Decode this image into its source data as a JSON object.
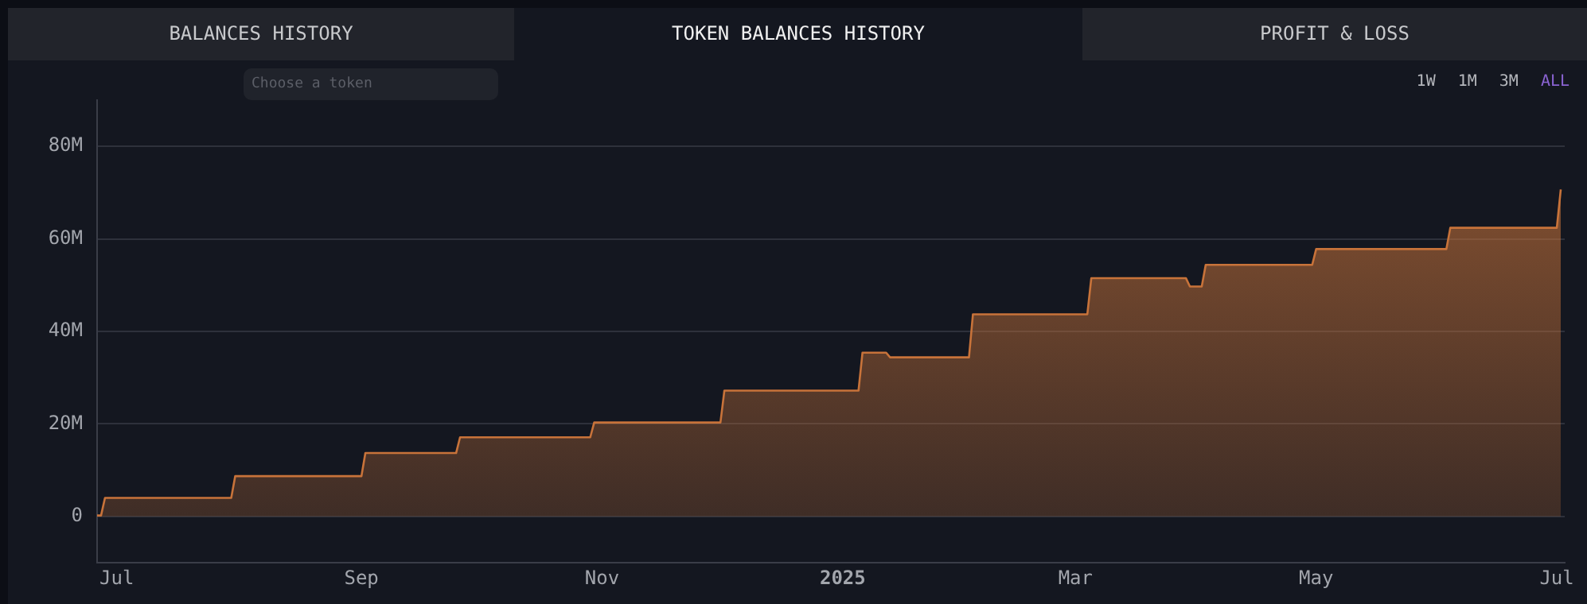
{
  "chart_data": {
    "type": "area",
    "title": "TOKEN BALANCES HISTORY",
    "annotations": [
      "BALANCES HISTORY",
      "PROFIT & LOSS",
      "Choose a token",
      "1W",
      "1M",
      "3M",
      "ALL"
    ],
    "x": [
      "2024-06-26",
      "2024-06-27",
      "2024-06-28",
      "2024-07-30",
      "2024-07-31",
      "2024-09-01",
      "2024-09-02",
      "2024-09-25",
      "2024-09-26",
      "2024-10-29",
      "2024-10-30",
      "2024-12-01",
      "2024-12-02",
      "2025-01-05",
      "2025-01-06",
      "2025-01-12",
      "2025-01-13",
      "2025-02-02",
      "2025-02-03",
      "2025-03-04",
      "2025-03-05",
      "2025-03-29",
      "2025-03-30",
      "2025-04-02",
      "2025-04-03",
      "2025-04-30",
      "2025-05-01",
      "2025-06-03",
      "2025-06-04",
      "2025-07-01",
      "2025-07-02"
    ],
    "series": [
      {
        "color": "#c8733a",
        "values": [
          0.2,
          0.2,
          4,
          4,
          8.7,
          8.7,
          13.7,
          13.7,
          17.1,
          17.1,
          20.3,
          20.3,
          27.2,
          27.2,
          35.4,
          35.4,
          34.4,
          34.4,
          43.7,
          43.7,
          51.5,
          51.5,
          49.7,
          49.7,
          54.4,
          54.4,
          57.8,
          57.8,
          62.4,
          62.4,
          70.7
        ]
      }
    ],
    "xlim": [
      "2024-06-26",
      "2025-07-03"
    ],
    "xticks": [
      {
        "value": "2024-07-01",
        "label": "Jul"
      },
      {
        "value": "2024-09-01",
        "label": "Sep"
      },
      {
        "value": "2024-11-01",
        "label": "Nov"
      },
      {
        "value": "2025-01-01",
        "label": "2025"
      },
      {
        "value": "2025-03-01",
        "label": "Mar"
      },
      {
        "value": "2025-05-01",
        "label": "May"
      },
      {
        "value": "2025-07-01",
        "label": "Jul"
      }
    ],
    "ylim": [
      -10,
      90
    ],
    "yticks": [
      {
        "value": 0,
        "label": "0"
      },
      {
        "value": 20,
        "label": "20M"
      },
      {
        "value": 40,
        "label": "40M"
      },
      {
        "value": 60,
        "label": "60M"
      },
      {
        "value": 80,
        "label": "80M"
      }
    ],
    "grid": "y",
    "legend": false,
    "marker": "none",
    "line_style": "solid"
  }
}
